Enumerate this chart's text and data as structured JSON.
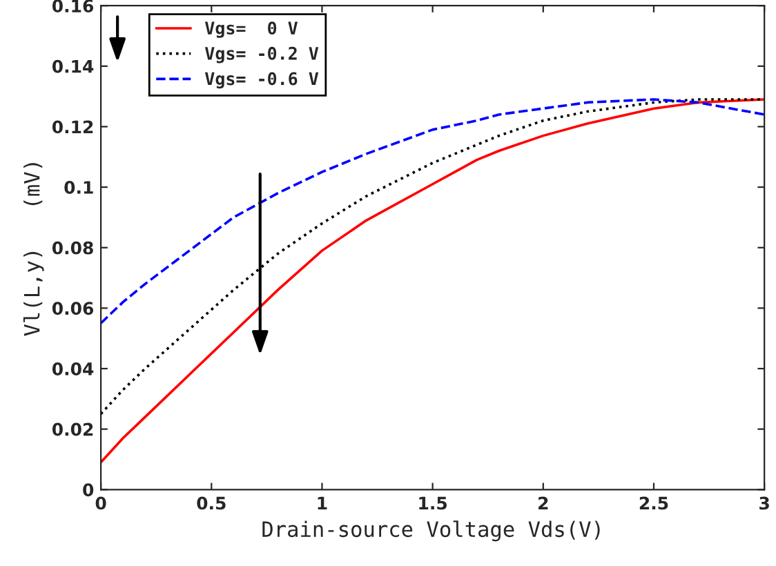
{
  "chart_data": {
    "type": "line",
    "xlabel": "Drain-source Voltage Vds(V)",
    "ylabel": "Vl(L,y)   (mV)",
    "x": [
      0,
      0.1,
      0.2,
      0.4,
      0.6,
      0.8,
      1.0,
      1.2,
      1.5,
      1.7,
      1.8,
      2.0,
      2.2,
      2.5,
      2.7,
      3.0
    ],
    "series": [
      {
        "name": "Vgs=  0 V",
        "color": "#ff0000",
        "line_style": "solid",
        "values": [
          0.009,
          0.017,
          0.024,
          0.038,
          0.052,
          0.066,
          0.079,
          0.089,
          0.101,
          0.109,
          0.112,
          0.117,
          0.121,
          0.126,
          0.128,
          0.129
        ]
      },
      {
        "name": "Vgs= -0.2 V",
        "color": "#000000",
        "line_style": "dotted",
        "values": [
          0.025,
          0.033,
          0.04,
          0.053,
          0.066,
          0.078,
          0.088,
          0.097,
          0.108,
          0.114,
          0.117,
          0.122,
          0.125,
          0.128,
          0.129,
          0.129
        ]
      },
      {
        "name": "Vgs= -0.6 V",
        "color": "#0000ff",
        "line_style": "dashed",
        "values": [
          0.055,
          0.062,
          0.068,
          0.079,
          0.09,
          0.098,
          0.105,
          0.111,
          0.119,
          0.122,
          0.124,
          0.126,
          0.128,
          0.129,
          0.128,
          0.124
        ]
      }
    ],
    "xlim": [
      0,
      3
    ],
    "xticks": [
      0,
      0.5,
      1,
      1.5,
      2,
      2.5,
      3
    ],
    "ylim": [
      0,
      0.16
    ],
    "yticks": [
      0,
      0.02,
      0.04,
      0.06,
      0.08,
      0.1,
      0.12,
      0.14,
      0.16
    ],
    "grid": false,
    "legend": "top left"
  }
}
